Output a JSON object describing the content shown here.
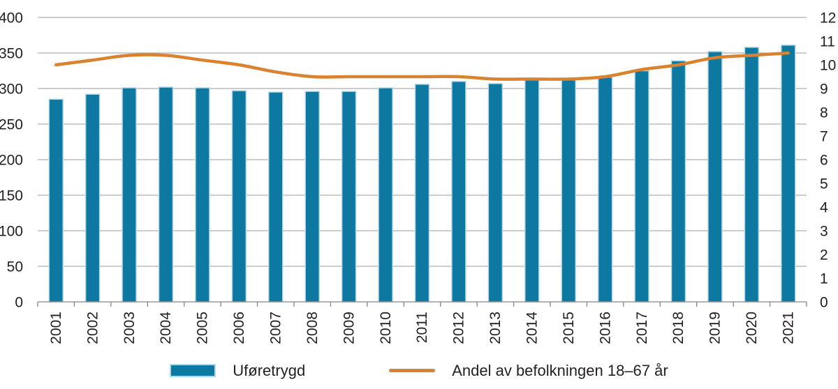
{
  "chart_data": {
    "type": "bar",
    "subtype": "combo-bar-line",
    "categories": [
      "2001",
      "2002",
      "2003",
      "2004",
      "2005",
      "2006",
      "2007",
      "2008",
      "2009",
      "2010",
      "2011",
      "2012",
      "2013",
      "2014",
      "2015",
      "2016",
      "2017",
      "2018",
      "2019",
      "2020",
      "2021"
    ],
    "series": [
      {
        "name": "Uføretrygd",
        "type": "bar",
        "axis": "left",
        "values": [
          285,
          292,
          301,
          302,
          301,
          297,
          295,
          296,
          296,
          301,
          306,
          310,
          307,
          312,
          312,
          316,
          325,
          339,
          352,
          358,
          361
        ]
      },
      {
        "name": "Andel av befolkningen 18–67 år",
        "type": "line",
        "axis": "right",
        "values": [
          10.0,
          10.2,
          10.4,
          10.4,
          10.2,
          10.0,
          9.7,
          9.5,
          9.5,
          9.5,
          9.5,
          9.5,
          9.4,
          9.4,
          9.4,
          9.5,
          9.8,
          10.0,
          10.3,
          10.4,
          10.5
        ]
      }
    ],
    "left_axis": {
      "min": 0,
      "max": 400,
      "step": 50,
      "ticks": [
        "0",
        "50",
        "100",
        "150",
        "200",
        "250",
        "300",
        "350",
        "400"
      ]
    },
    "right_axis": {
      "min": 0,
      "max": 12,
      "step": 1,
      "ticks": [
        "0",
        "1",
        "2",
        "3",
        "4",
        "5",
        "6",
        "7",
        "8",
        "9",
        "10",
        "11",
        "12"
      ]
    },
    "grid": true,
    "legend_position": "bottom",
    "title": "",
    "xlabel": "",
    "ylabel": ""
  },
  "legend": {
    "items": [
      {
        "label": "Uføretrygd",
        "swatch": "bar"
      },
      {
        "label": "Andel av befolkningen 18–67 år",
        "swatch": "line"
      }
    ]
  },
  "colors": {
    "bar": "#0e79a0",
    "bar_border": "#b6d7e6",
    "line": "#d9822f",
    "grid": "#9a9c9e",
    "axis": "#828487",
    "text": "#231f20",
    "background": "#ffffff"
  }
}
